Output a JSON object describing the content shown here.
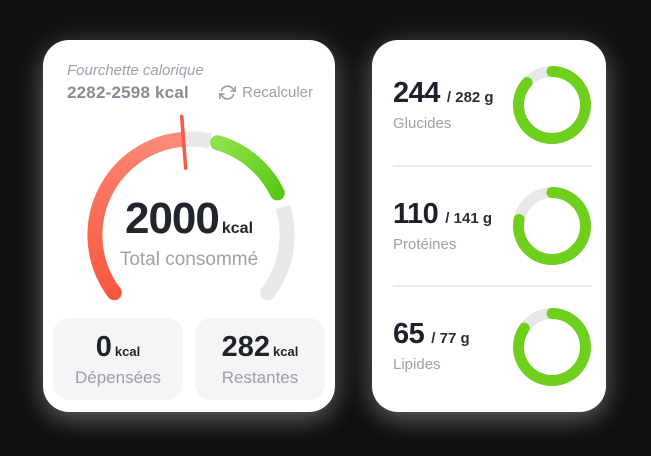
{
  "theme": {
    "background": "#0f0f0f",
    "track_gray": "#e8e8ea",
    "ring_green": "#6ecf1c",
    "gauge_red": "#f8573d",
    "gauge_red_light": "#fd9181",
    "gauge_green": "#55c513",
    "gauge_green_light": "#8fe24b",
    "needle_red": "#fa5b45",
    "text_dark": "#21252c",
    "text_gray": "#9aa2ae"
  },
  "calorie_card": {
    "range_title": "Fourchette calorique",
    "range_value": "2282-2598 kcal",
    "recalculate_label": "Recalculer",
    "gauge": {
      "value": "2000",
      "unit": "kcal",
      "caption": "Total consommé",
      "needle": {
        "angle": -4.5,
        "inner": 67,
        "outer": 119
      },
      "segments": [
        {
          "name": "consumed",
          "from": -127,
          "to": -4.5,
          "color": "red",
          "round_start": true
        },
        {
          "name": "track-upper",
          "from": -4.5,
          "to": 11.5,
          "color": "track"
        },
        {
          "name": "target-range",
          "from": 16,
          "to": 64,
          "color": "green",
          "cap": "round"
        },
        {
          "name": "track-lower",
          "from": 73,
          "to": 127,
          "color": "track",
          "round_end": true
        }
      ]
    },
    "stats": [
      {
        "value": "0",
        "unit": "kcal",
        "label": "Dépensées"
      },
      {
        "value": "282",
        "unit": "kcal",
        "label": "Restantes"
      }
    ]
  },
  "macros_card": {
    "rows": [
      {
        "value": "244",
        "max": "/ 282 g",
        "label": "Glucides",
        "percent": 86.5
      },
      {
        "value": "110",
        "max": "/ 141 g",
        "label": "Protéines",
        "percent": 78.0
      },
      {
        "value": "65",
        "max": "/ 77 g",
        "label": "Lipides",
        "percent": 84.4
      }
    ]
  },
  "chart_data": [
    {
      "type": "gauge",
      "title": "Total consommé",
      "value": 2000,
      "unit": "kcal",
      "target_range": [
        2282,
        2598
      ],
      "spent_kcal": 0,
      "remaining_kcal": 282
    },
    {
      "type": "donut",
      "label": "Glucides",
      "value": 244,
      "max": 282,
      "unit": "g"
    },
    {
      "type": "donut",
      "label": "Protéines",
      "value": 110,
      "max": 141,
      "unit": "g"
    },
    {
      "type": "donut",
      "label": "Lipides",
      "value": 65,
      "max": 77,
      "unit": "g"
    }
  ]
}
